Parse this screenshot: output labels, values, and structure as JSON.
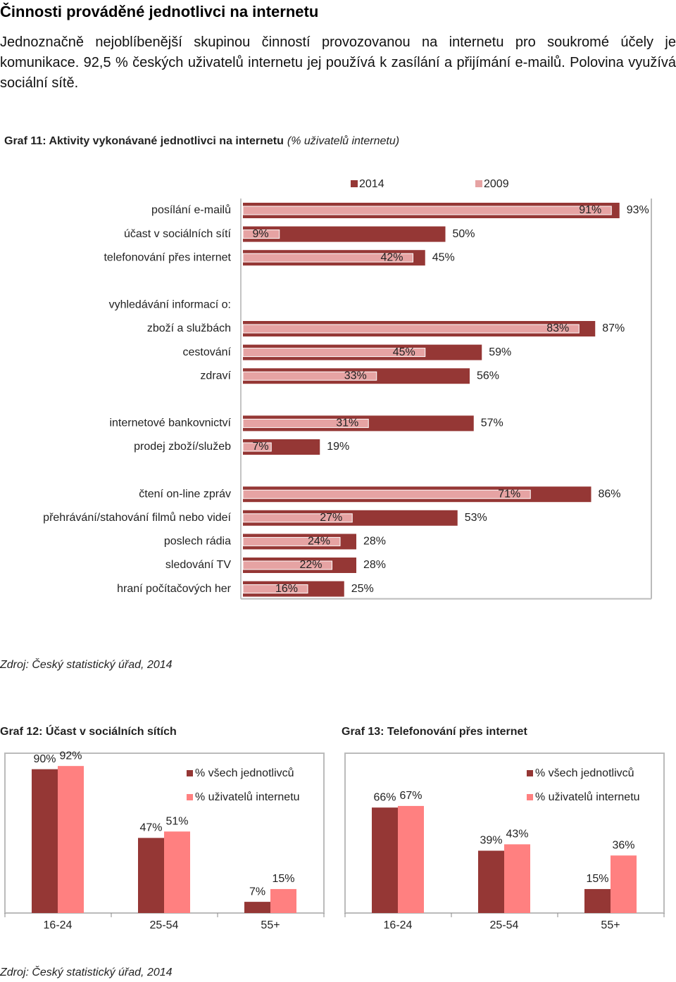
{
  "heading": "Činnosti prováděné jednotlivci na internetu",
  "paragraph": "Jednoznačně nejoblíbenější skupinou činností provozovanou na internetu pro soukromé účely je komunikace. 92,5 % českých uživatelů internetu jej používá k zasílání a přijímání e-mailů. Polovina využívá sociální sítě.",
  "chart_data": [
    {
      "type": "bar",
      "orientation": "horizontal",
      "title": "Graf 11: Aktivity vykonávané jednotlivci na internetu",
      "subtitle": "(% uživatelů internetu)",
      "categories": [
        "posílání e-mailů",
        "účast v sociálních sítí",
        "telefonování přes internet",
        null,
        "vyhledávání informací o:",
        "zboží a službách",
        "cestování",
        "zdraví",
        null,
        "internetové bankovnictví",
        "prodej zboží/služeb",
        null,
        "čtení on-line zpráv",
        "přehrávání/stahování filmů nebo videí",
        "poslech rádia",
        "sledování TV",
        "hraní počítačových her"
      ],
      "series": [
        {
          "name": "2014",
          "color": "#953735",
          "values": [
            93,
            50,
            45,
            null,
            null,
            87,
            59,
            56,
            null,
            57,
            19,
            null,
            86,
            53,
            28,
            28,
            25
          ],
          "value_labels": [
            "93%",
            "50%",
            "45%",
            null,
            null,
            "87%",
            "59%",
            "56%",
            null,
            "57%",
            "19%",
            null,
            "86%",
            "53%",
            "28%",
            "28%",
            "25%"
          ]
        },
        {
          "name": "2009",
          "color": "#e6a3a3",
          "values": [
            91,
            9,
            42,
            null,
            null,
            83,
            45,
            33,
            null,
            31,
            7,
            null,
            71,
            27,
            24,
            22,
            16
          ],
          "value_labels": [
            "91%",
            "9%",
            "42%",
            null,
            null,
            "83%",
            "45%",
            "33%",
            null,
            "31%",
            "7%",
            null,
            "71%",
            "27%",
            "24%",
            "22%",
            "16%"
          ]
        }
      ],
      "xlim": [
        0,
        100
      ],
      "source": "Zdroj: Český statistický úřad, 2014"
    },
    {
      "type": "bar",
      "title": "Graf 12: Účast v sociálních sítích",
      "categories": [
        "16-24",
        "25-54",
        "55+"
      ],
      "series": [
        {
          "name": "% všech jednotlivců",
          "color": "#953735",
          "values": [
            90,
            47,
            7
          ],
          "value_labels": [
            "90%",
            "47%",
            "7%"
          ]
        },
        {
          "name": "% uživatelů internetu",
          "color": "#ff8080",
          "values": [
            92,
            51,
            15
          ],
          "value_labels": [
            "92%",
            "51%",
            "15%"
          ]
        }
      ],
      "ylim": [
        0,
        100
      ],
      "source": "Zdroj: Český statistický úřad, 2014"
    },
    {
      "type": "bar",
      "title": "Graf 13: Telefonování přes internet",
      "categories": [
        "16-24",
        "25-54",
        "55+"
      ],
      "series": [
        {
          "name": "% všech jednotlivců",
          "color": "#953735",
          "values": [
            66,
            39,
            15
          ],
          "value_labels": [
            "66%",
            "39%",
            "15%"
          ]
        },
        {
          "name": "% uživatelů internetu",
          "color": "#ff8080",
          "values": [
            67,
            43,
            36
          ],
          "value_labels": [
            "67%",
            "43%",
            "36%"
          ]
        }
      ],
      "ylim": [
        0,
        100
      ]
    }
  ]
}
